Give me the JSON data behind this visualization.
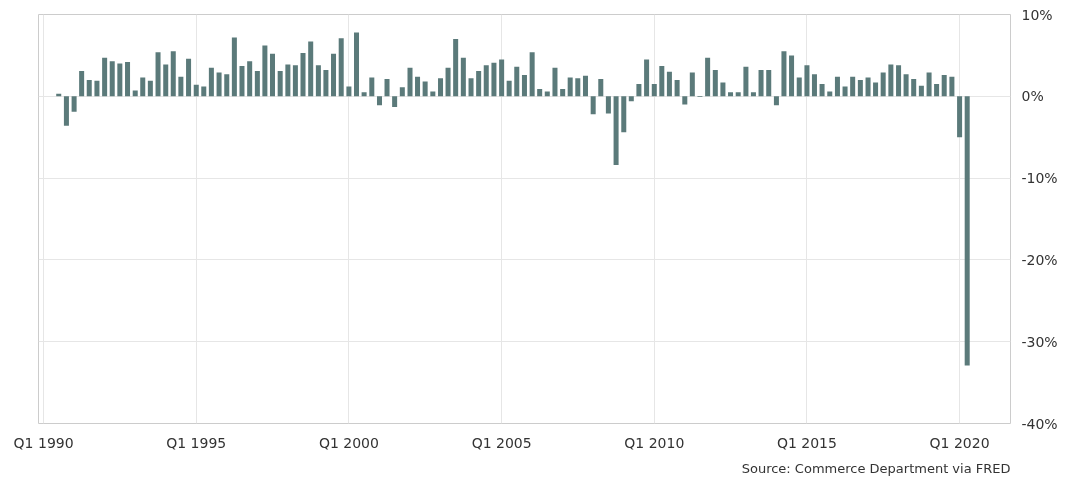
{
  "chart_data": {
    "type": "bar",
    "color": "#5b7a7a",
    "x": [
      "1990-07",
      "1990-10",
      "1991-01",
      "1991-04",
      "1991-07",
      "1991-10",
      "1992-01",
      "1992-04",
      "1992-07",
      "1992-10",
      "1993-01",
      "1993-04",
      "1993-07",
      "1993-10",
      "1994-01",
      "1994-04",
      "1994-07",
      "1994-10",
      "1995-01",
      "1995-04",
      "1995-07",
      "1995-10",
      "1996-01",
      "1996-04",
      "1996-07",
      "1996-10",
      "1997-01",
      "1997-04",
      "1997-07",
      "1997-10",
      "1998-01",
      "1998-04",
      "1998-07",
      "1998-10",
      "1999-01",
      "1999-04",
      "1999-07",
      "1999-10",
      "2000-01",
      "2000-04",
      "2000-07",
      "2000-10",
      "2001-01",
      "2001-04",
      "2001-07",
      "2001-10",
      "2002-01",
      "2002-04",
      "2002-07",
      "2002-10",
      "2003-01",
      "2003-04",
      "2003-07",
      "2003-10",
      "2004-01",
      "2004-04",
      "2004-07",
      "2004-10",
      "2005-01",
      "2005-04",
      "2005-07",
      "2005-10",
      "2006-01",
      "2006-04",
      "2006-07",
      "2006-10",
      "2007-01",
      "2007-04",
      "2007-07",
      "2007-10",
      "2008-01",
      "2008-04",
      "2008-07",
      "2008-10",
      "2009-01",
      "2009-04",
      "2009-07",
      "2009-10",
      "2010-01",
      "2010-04",
      "2010-07",
      "2010-10",
      "2011-01",
      "2011-04",
      "2011-07",
      "2011-10",
      "2012-01",
      "2012-04",
      "2012-07",
      "2012-10",
      "2013-01",
      "2013-04",
      "2013-07",
      "2013-10",
      "2014-01",
      "2014-04",
      "2014-07",
      "2014-10",
      "2015-01",
      "2015-04",
      "2015-07",
      "2015-10",
      "2016-01",
      "2016-04",
      "2016-07",
      "2016-10",
      "2017-01",
      "2017-04",
      "2017-07",
      "2017-10",
      "2018-01",
      "2018-04",
      "2018-07",
      "2018-10",
      "2019-01",
      "2019-04",
      "2019-07",
      "2019-10",
      "2020-01",
      "2020-04"
    ],
    "values": [
      0.3,
      -3.6,
      -1.9,
      3.1,
      2.0,
      1.9,
      4.7,
      4.3,
      4.0,
      4.2,
      0.7,
      2.3,
      1.9,
      5.4,
      3.9,
      5.5,
      2.4,
      4.6,
      1.4,
      1.2,
      3.5,
      2.9,
      2.7,
      7.2,
      3.7,
      4.3,
      3.1,
      6.2,
      5.2,
      3.1,
      3.9,
      3.8,
      5.3,
      6.7,
      3.8,
      3.2,
      5.2,
      7.1,
      1.2,
      7.8,
      0.5,
      2.3,
      -1.1,
      2.1,
      -1.3,
      1.1,
      3.5,
      2.4,
      1.8,
      0.6,
      2.2,
      3.5,
      7.0,
      4.7,
      2.2,
      3.1,
      3.8,
      4.1,
      4.5,
      1.9,
      3.6,
      2.6,
      5.4,
      0.9,
      0.6,
      3.5,
      0.9,
      2.3,
      2.2,
      2.5,
      -2.2,
      2.1,
      -2.1,
      -8.4,
      -4.4,
      -0.6,
      1.5,
      4.5,
      1.5,
      3.7,
      3.0,
      2.0,
      -1.0,
      2.9,
      -0.1,
      4.7,
      3.2,
      1.7,
      0.5,
      0.5,
      3.6,
      0.5,
      3.2,
      3.2,
      -1.1,
      5.5,
      5.0,
      2.3,
      3.8,
      2.7,
      1.5,
      0.6,
      2.4,
      1.2,
      2.4,
      2.0,
      2.3,
      1.7,
      2.9,
      3.9,
      3.8,
      2.7,
      2.1,
      1.3,
      2.9,
      1.5,
      2.6,
      2.4,
      -5.0,
      -32.9
    ],
    "xlim": [
      "1989-11",
      "2021-09"
    ],
    "xticks": [
      {
        "value": "1990-01",
        "label": "Q1 1990"
      },
      {
        "value": "1995-01",
        "label": "Q1 1995"
      },
      {
        "value": "2000-01",
        "label": "Q1 2000"
      },
      {
        "value": "2005-01",
        "label": "Q1 2005"
      },
      {
        "value": "2010-01",
        "label": "Q1 2010"
      },
      {
        "value": "2015-01",
        "label": "Q1 2015"
      },
      {
        "value": "2020-01",
        "label": "Q1 2020"
      }
    ],
    "ylim": [
      -40,
      10
    ],
    "yticks": [
      {
        "value": -40,
        "label": "-40%"
      },
      {
        "value": -30,
        "label": "-30%"
      },
      {
        "value": -20,
        "label": "-20%"
      },
      {
        "value": -10,
        "label": "-10%"
      },
      {
        "value": 0,
        "label": "0%"
      },
      {
        "value": 10,
        "label": "10%"
      }
    ],
    "grid": true,
    "annotations": [
      "Source: Commerce Department via FRED"
    ]
  }
}
